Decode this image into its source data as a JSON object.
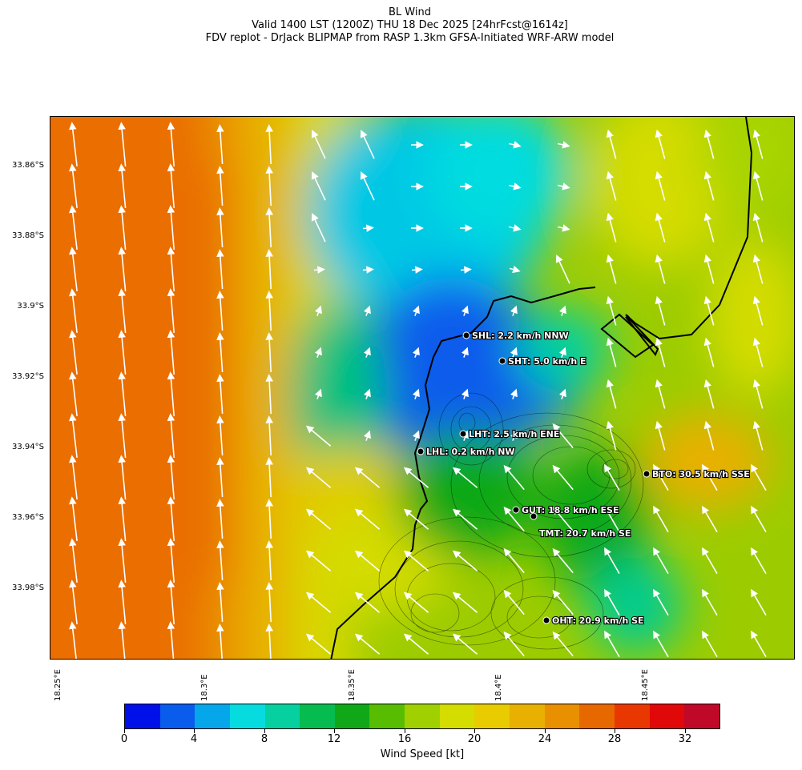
{
  "title": {
    "line1": "BL Wind",
    "line2": "Valid 1400 LST (1200Z) THU 18 Dec 2025 [24hrFcst@1614z]",
    "line3": "FDV replot - DrJack BLIPMAP from RASP 1.3km GFSA-Initiated WRF-ARW model"
  },
  "map": {
    "lat_labels": [
      "33.86°S",
      "33.88°S",
      "33.9°S",
      "33.92°S",
      "33.94°S",
      "33.96°S",
      "33.98°S"
    ],
    "lon_labels": [
      "18.25°E",
      "18.3°E",
      "18.35°E",
      "18.4°E",
      "18.45°E"
    ],
    "stations": [
      {
        "id": "SHL",
        "label": "SHL: 2.2 km/h NNW"
      },
      {
        "id": "SHT",
        "label": "SHT: 5.0 km/h E"
      },
      {
        "id": "LHT",
        "label": "LHT: 2.5 km/h ENE"
      },
      {
        "id": "LHL",
        "label": "LHL: 0.2 km/h NW"
      },
      {
        "id": "BTO",
        "label": "BTO: 30.5 km/h SSE"
      },
      {
        "id": "GUT",
        "label": "GUT: 18.8 km/h ESE"
      },
      {
        "id": "TMT",
        "label": "TMT: 20.7 km/h SE"
      },
      {
        "id": "OHT",
        "label": "OHT: 20.9 km/h SE"
      }
    ]
  },
  "colorbar": {
    "title": "Wind Speed [kt]",
    "tick_labels": [
      "0",
      "4",
      "8",
      "12",
      "16",
      "20",
      "24",
      "28",
      "32"
    ],
    "colors": [
      "#0010e8",
      "#0a5cec",
      "#06a6ea",
      "#06dce0",
      "#06d0a0",
      "#06bc50",
      "#10a818",
      "#58bc00",
      "#a0d000",
      "#d4dc00",
      "#e8cc00",
      "#e8b000",
      "#e89000",
      "#e86800",
      "#e83800",
      "#e00808",
      "#c00828"
    ]
  }
}
